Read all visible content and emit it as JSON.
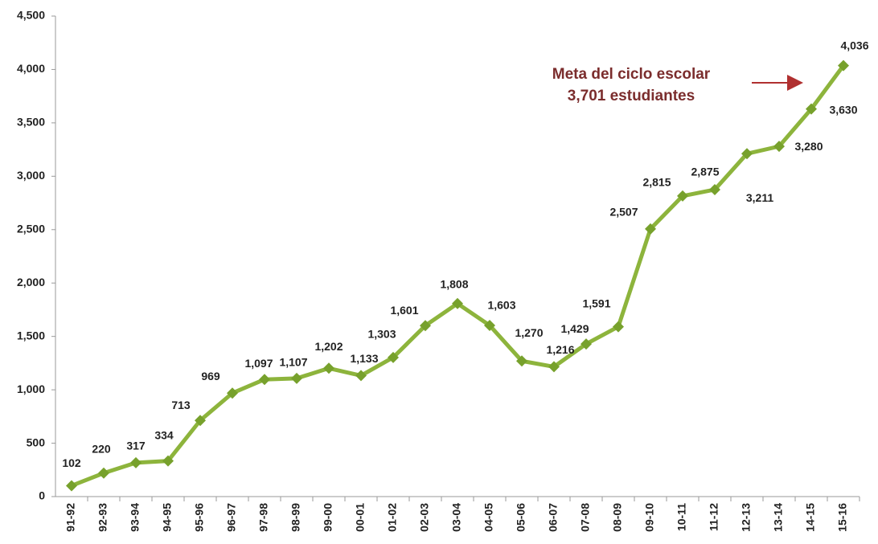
{
  "chart_data": {
    "type": "line",
    "categories": [
      "91-92",
      "92-93",
      "93-94",
      "94-95",
      "95-96",
      "96-97",
      "97-98",
      "98-99",
      "99-00",
      "00-01",
      "01-02",
      "02-03",
      "03-04",
      "04-05",
      "05-06",
      "06-07",
      "07-08",
      "08-09",
      "09-10",
      "10-11",
      "11-12",
      "12-13",
      "13-14",
      "14-15",
      "15-16"
    ],
    "values": [
      102,
      220,
      317,
      334,
      713,
      969,
      1097,
      1107,
      1202,
      1133,
      1303,
      1601,
      1808,
      1603,
      1270,
      1216,
      1429,
      1591,
      2507,
      2815,
      2875,
      3211,
      3280,
      3630,
      4036
    ],
    "value_labels": [
      "102",
      "220",
      "317",
      "334",
      "713",
      "969",
      "1,097",
      "1,107",
      "1,202",
      "1,133",
      "1,303",
      "1,601",
      "1,808",
      "1,603",
      "1,270",
      "1,216",
      "1,429",
      "1,591",
      "2,507",
      "2,815",
      "2,875",
      "3,211",
      "3,280",
      "3,630",
      "4,036"
    ],
    "color": "#8db43c",
    "marker_color": "#77a12c",
    "ylim": [
      0,
      4500
    ],
    "yticks": [
      0,
      500,
      {
        "value": 1000,
        "label": "1,000"
      },
      {
        "value": 1500,
        "label": "1,500"
      },
      {
        "value": 2000,
        "label": "2,000"
      },
      {
        "value": 2500,
        "label": "2,500"
      },
      {
        "value": 3000,
        "label": "3,000"
      },
      {
        "value": 3500,
        "label": "3,500"
      },
      {
        "value": 4000,
        "label": "4,000"
      },
      {
        "value": 4500,
        "label": "4,500"
      }
    ],
    "annotation": {
      "lines": [
        "Meta del ciclo escolar",
        "3,701 estudiantes"
      ],
      "color": "#7b2d2d"
    }
  }
}
